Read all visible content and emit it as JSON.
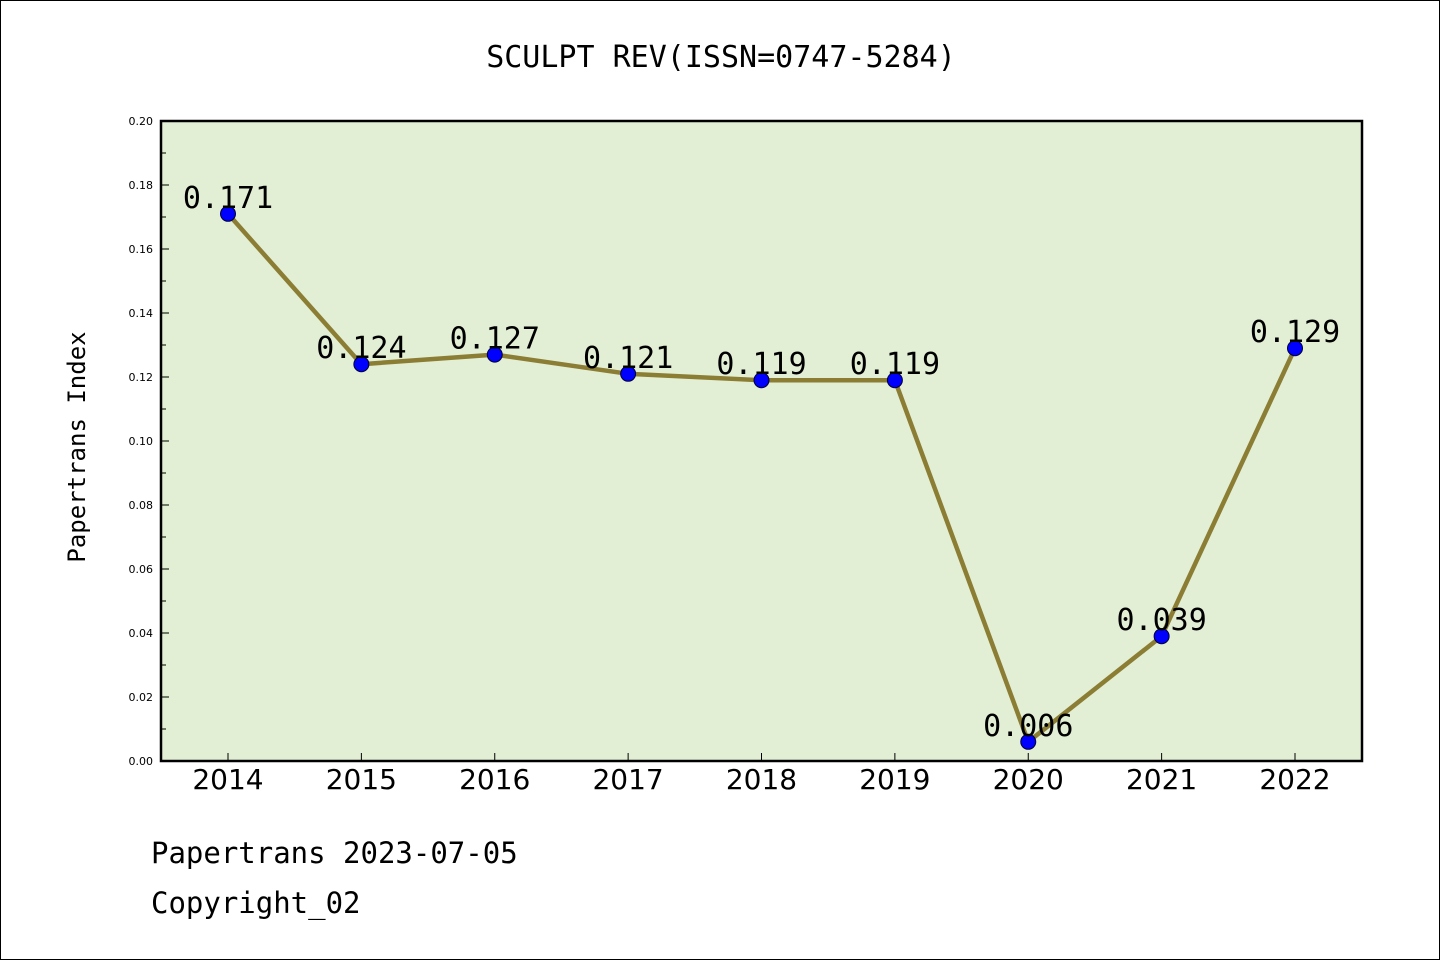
{
  "footer": {
    "line1": "Papertrans 2023-07-05",
    "line2": "Copyright_02"
  },
  "colors": {
    "plot_background": "#e2efd5",
    "line": "#8b7d33",
    "marker": "#0000ff"
  },
  "chart_data": {
    "type": "line",
    "title": "SCULPT REV(ISSN=0747-5284)",
    "xlabel": "",
    "ylabel": "Papertrans Index",
    "categories": [
      "2014",
      "2015",
      "2016",
      "2017",
      "2018",
      "2019",
      "2020",
      "2021",
      "2022"
    ],
    "series": [
      {
        "values": [
          0.171,
          0.124,
          0.127,
          0.121,
          0.119,
          0.119,
          0.006,
          0.039,
          0.129
        ],
        "data_labels": [
          "0.171",
          "0.124",
          "0.127",
          "0.121",
          "0.119",
          "0.119",
          "0.006",
          "0.039",
          "0.129"
        ]
      }
    ],
    "ylim": [
      0,
      0.2
    ],
    "yticks": [
      "0.00",
      "0.02",
      "0.04",
      "0.06",
      "0.08",
      "0.10",
      "0.12",
      "0.14",
      "0.16",
      "0.18",
      "0.20"
    ],
    "grid": false,
    "legend": "none"
  }
}
